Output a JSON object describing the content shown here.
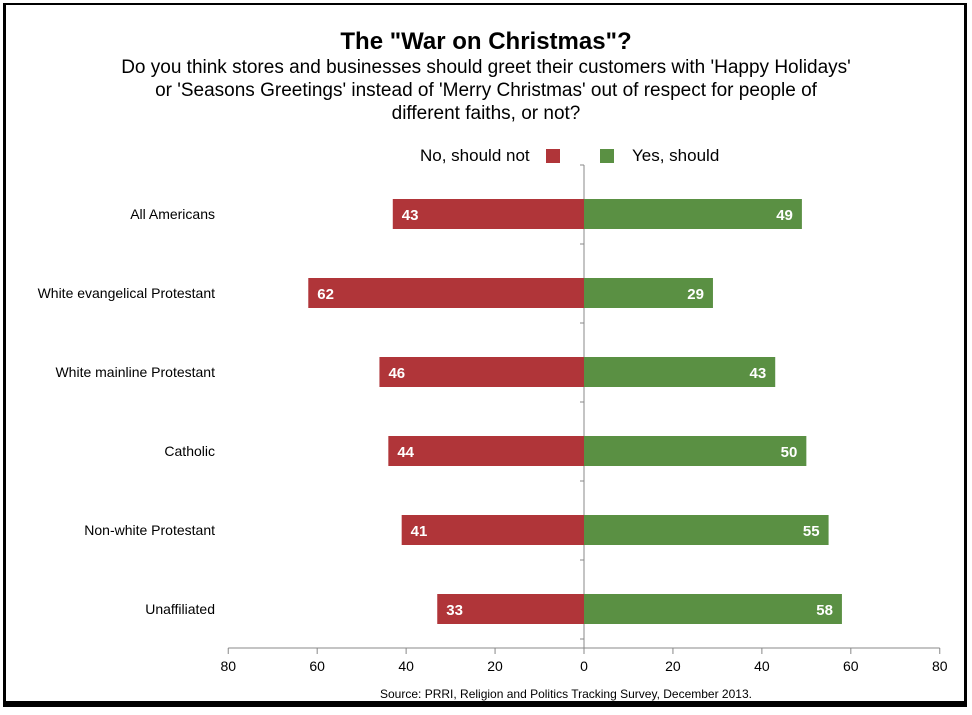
{
  "chart_data": {
    "type": "bar",
    "orientation": "horizontal-diverging",
    "title": "The \"War on Christmas\"?",
    "subtitle": "Do you think stores and businesses should greet their customers with 'Happy Holidays' or 'Seasons Greetings' instead of 'Merry Christmas' out of respect for people of different faiths, or not?",
    "categories": [
      "All Americans",
      "White evangelical Protestant",
      "White mainline Protestant",
      "Catholic",
      "Non-white Protestant",
      "Unaffiliated"
    ],
    "series": [
      {
        "name": "No, should not",
        "color": "#b03539",
        "values": [
          43,
          62,
          46,
          44,
          41,
          33
        ]
      },
      {
        "name": "Yes, should",
        "color": "#5a9043",
        "values": [
          49,
          29,
          43,
          50,
          55,
          58
        ]
      }
    ],
    "xlim": [
      -80,
      80
    ],
    "xticks": [
      -80,
      -60,
      -40,
      -20,
      0,
      20,
      40,
      60,
      80
    ],
    "xtick_labels": [
      "80",
      "60",
      "40",
      "20",
      "0",
      "20",
      "40",
      "60",
      "80"
    ],
    "legend_position": "top-center",
    "grid": false,
    "source": "Source: PRRI, Religion and Politics Tracking Survey, December 2013."
  }
}
